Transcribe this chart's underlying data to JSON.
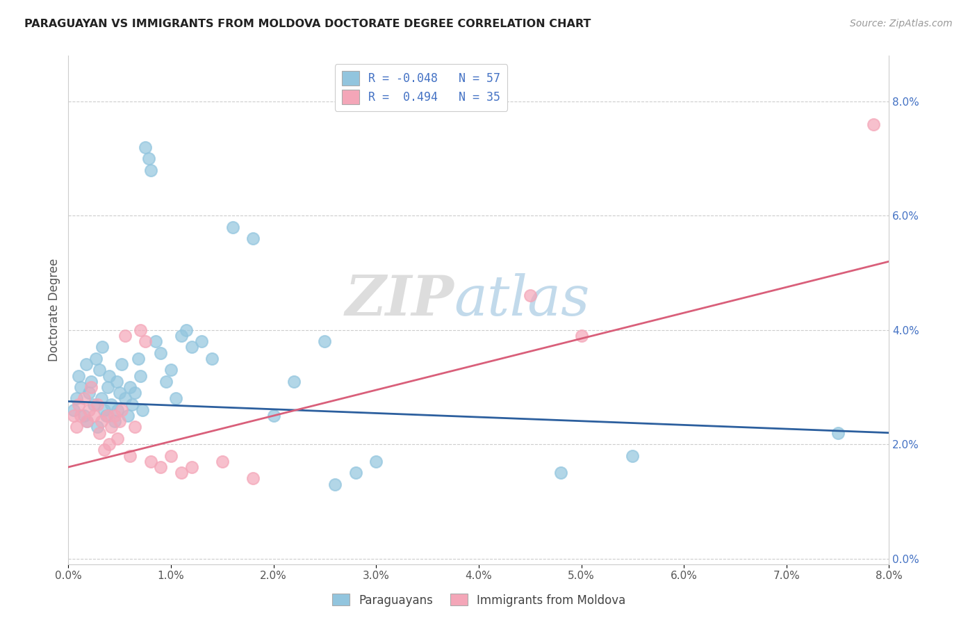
{
  "title": "PARAGUAYAN VS IMMIGRANTS FROM MOLDOVA DOCTORATE DEGREE CORRELATION CHART",
  "source": "Source: ZipAtlas.com",
  "ylabel": "Doctorate Degree",
  "watermark_zip": "ZIP",
  "watermark_atlas": "atlas",
  "xlim": [
    0.0,
    8.0
  ],
  "ylim": [
    -0.1,
    8.8
  ],
  "yticks": [
    0.0,
    2.0,
    4.0,
    6.0,
    8.0
  ],
  "xticks": [
    0.0,
    1.0,
    2.0,
    3.0,
    4.0,
    5.0,
    6.0,
    7.0,
    8.0
  ],
  "legend_line1": "R = -0.048   N = 57",
  "legend_line2": "R =  0.494   N = 35",
  "blue_scatter_color": "#92c5de",
  "pink_scatter_color": "#f4a6b8",
  "blue_line_color": "#2c5f9e",
  "pink_line_color": "#d95f7a",
  "paraguayan_label": "Paraguayans",
  "moldova_label": "Immigrants from Moldova",
  "paraguayan_x": [
    0.05,
    0.08,
    0.1,
    0.12,
    0.15,
    0.17,
    0.18,
    0.2,
    0.22,
    0.25,
    0.27,
    0.28,
    0.3,
    0.32,
    0.33,
    0.35,
    0.37,
    0.38,
    0.4,
    0.42,
    0.45,
    0.47,
    0.48,
    0.5,
    0.52,
    0.55,
    0.58,
    0.6,
    0.62,
    0.65,
    0.68,
    0.7,
    0.72,
    0.75,
    0.78,
    0.8,
    0.85,
    0.9,
    0.95,
    1.0,
    1.05,
    1.1,
    1.15,
    1.2,
    1.3,
    1.4,
    1.6,
    1.8,
    2.0,
    2.2,
    2.5,
    2.6,
    2.8,
    3.0,
    4.8,
    5.5,
    7.5
  ],
  "paraguayan_y": [
    2.6,
    2.8,
    3.2,
    3.0,
    2.5,
    3.4,
    2.4,
    2.9,
    3.1,
    2.7,
    3.5,
    2.3,
    3.3,
    2.8,
    3.7,
    2.6,
    2.5,
    3.0,
    3.2,
    2.7,
    2.4,
    3.1,
    2.6,
    2.9,
    3.4,
    2.8,
    2.5,
    3.0,
    2.7,
    2.9,
    3.5,
    3.2,
    2.6,
    7.2,
    7.0,
    6.8,
    3.8,
    3.6,
    3.1,
    3.3,
    2.8,
    3.9,
    4.0,
    3.7,
    3.8,
    3.5,
    5.8,
    5.6,
    2.5,
    3.1,
    3.8,
    1.3,
    1.5,
    1.7,
    1.5,
    1.8,
    2.2
  ],
  "moldova_x": [
    0.05,
    0.08,
    0.1,
    0.12,
    0.15,
    0.18,
    0.2,
    0.22,
    0.25,
    0.28,
    0.3,
    0.32,
    0.35,
    0.38,
    0.4,
    0.42,
    0.45,
    0.48,
    0.5,
    0.52,
    0.55,
    0.6,
    0.65,
    0.7,
    0.75,
    0.8,
    0.9,
    1.0,
    1.1,
    1.2,
    1.5,
    1.8,
    4.5,
    5.0,
    7.85
  ],
  "moldova_y": [
    2.5,
    2.3,
    2.7,
    2.5,
    2.8,
    2.4,
    2.6,
    3.0,
    2.5,
    2.7,
    2.2,
    2.4,
    1.9,
    2.5,
    2.0,
    2.3,
    2.5,
    2.1,
    2.4,
    2.6,
    3.9,
    1.8,
    2.3,
    4.0,
    3.8,
    1.7,
    1.6,
    1.8,
    1.5,
    1.6,
    1.7,
    1.4,
    4.6,
    3.9,
    7.6
  ],
  "blue_reg_x0": 0.0,
  "blue_reg_x1": 8.0,
  "blue_reg_y0": 2.75,
  "blue_reg_y1": 2.2,
  "pink_reg_x0": 0.0,
  "pink_reg_x1": 8.0,
  "pink_reg_y0": 1.6,
  "pink_reg_y1": 5.2,
  "title_fontsize": 11.5,
  "source_fontsize": 10,
  "tick_fontsize": 11,
  "legend_fontsize": 12
}
